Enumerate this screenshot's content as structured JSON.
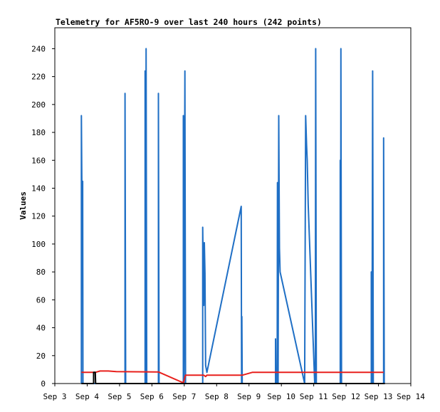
{
  "chart_data": {
    "type": "line",
    "title": "Telemetry for AF5RO-9 over last 240 hours (242 points)",
    "xlabel": "",
    "ylabel": "Values",
    "x_unit": "day of September",
    "xlim": [
      3,
      14
    ],
    "ylim": [
      0,
      255
    ],
    "x_ticks": [
      3,
      4,
      5,
      6,
      7,
      8,
      9,
      10,
      11,
      12,
      13,
      14
    ],
    "x_tick_labels": [
      "Sep 3",
      "Sep 4",
      "Sep 5",
      "Sep 6",
      "Sep 7",
      "Sep 8",
      "Sep 9",
      "Sep 10",
      "Sep 11",
      "Sep 12",
      "Sep 13",
      "Sep 14"
    ],
    "y_ticks": [
      0,
      20,
      40,
      60,
      80,
      100,
      120,
      140,
      160,
      180,
      200,
      220,
      240
    ],
    "grid": false,
    "legend": "none",
    "series": [
      {
        "color": "#1f6fc5",
        "points": [
          [
            3.82,
            0
          ],
          [
            3.82,
            192
          ],
          [
            3.85,
            97
          ],
          [
            3.86,
            145
          ],
          [
            3.87,
            0
          ],
          [
            5.17,
            0
          ],
          [
            5.17,
            208
          ],
          [
            5.19,
            0
          ],
          [
            5.79,
            0
          ],
          [
            5.79,
            224
          ],
          [
            5.81,
            0
          ],
          [
            5.82,
            240
          ],
          [
            5.84,
            0
          ],
          [
            6.2,
            0
          ],
          [
            6.2,
            208
          ],
          [
            6.22,
            0
          ],
          [
            6.97,
            0
          ],
          [
            6.97,
            192
          ],
          [
            6.99,
            0
          ],
          [
            7.02,
            224
          ],
          [
            7.04,
            0
          ],
          [
            7.57,
            0
          ],
          [
            7.57,
            112
          ],
          [
            7.6,
            56
          ],
          [
            7.62,
            101
          ],
          [
            7.64,
            79
          ],
          [
            7.66,
            13
          ],
          [
            7.7,
            8
          ],
          [
            8.76,
            127
          ],
          [
            8.77,
            0
          ],
          [
            8.78,
            48
          ],
          [
            8.79,
            0
          ],
          [
            9.82,
            0
          ],
          [
            9.82,
            32
          ],
          [
            9.83,
            0
          ],
          [
            9.87,
            0
          ],
          [
            9.88,
            144
          ],
          [
            9.9,
            0
          ],
          [
            9.92,
            192
          ],
          [
            9.94,
            97
          ],
          [
            9.96,
            80
          ],
          [
            10.72,
            0
          ],
          [
            10.75,
            192
          ],
          [
            10.78,
            171
          ],
          [
            10.8,
            160
          ],
          [
            10.83,
            128
          ],
          [
            11.03,
            0
          ],
          [
            11.05,
            0
          ],
          [
            11.06,
            240
          ],
          [
            11.08,
            0
          ],
          [
            11.82,
            0
          ],
          [
            11.82,
            160
          ],
          [
            11.83,
            0
          ],
          [
            11.84,
            240
          ],
          [
            11.86,
            0
          ],
          [
            12.78,
            0
          ],
          [
            12.78,
            80
          ],
          [
            12.8,
            0
          ],
          [
            12.82,
            224
          ],
          [
            12.84,
            0
          ],
          [
            13.16,
            0
          ],
          [
            13.16,
            176
          ],
          [
            13.18,
            0
          ]
        ]
      },
      {
        "color": "#e8201c",
        "points": [
          [
            3.82,
            8
          ],
          [
            4.25,
            8
          ],
          [
            4.4,
            9
          ],
          [
            4.65,
            9
          ],
          [
            4.9,
            8.5
          ],
          [
            6.2,
            8.3
          ],
          [
            6.97,
            0.5
          ],
          [
            7.04,
            6
          ],
          [
            7.6,
            6
          ],
          [
            7.66,
            5
          ],
          [
            7.7,
            6
          ],
          [
            8.8,
            6
          ],
          [
            9.1,
            8
          ],
          [
            13.16,
            8
          ]
        ]
      },
      {
        "color": "#000000",
        "points": [
          [
            3.82,
            0
          ],
          [
            4.2,
            0
          ],
          [
            4.2,
            8
          ],
          [
            4.25,
            8
          ],
          [
            4.26,
            0
          ],
          [
            13.2,
            0
          ]
        ]
      }
    ]
  }
}
